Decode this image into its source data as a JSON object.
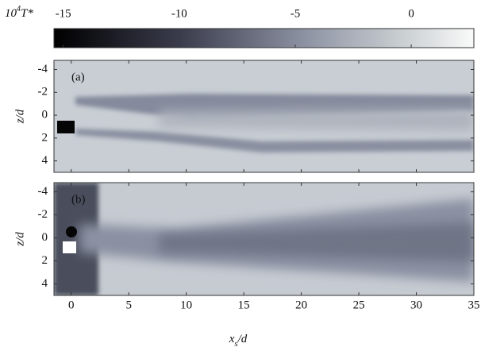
{
  "chart_data": {
    "type": "heatmap",
    "colorbar": {
      "label_base": "10",
      "label_exp": "4",
      "label_var": "T*",
      "clim": [
        -15.4,
        2.7
      ],
      "ticks": [
        -15,
        -10,
        -5,
        0
      ]
    },
    "xlabel": "x",
    "xlabel_sub": "s",
    "xlabel_rest": "/d",
    "ylabel": "z/d",
    "xlim": [
      -1.5,
      35
    ],
    "xticks": [
      0,
      5,
      10,
      15,
      20,
      25,
      30,
      35
    ],
    "panels": [
      {
        "label": "(a)",
        "ylim": [
          -4.8,
          5
        ],
        "yticks": [
          -4,
          -2,
          0,
          2,
          4
        ]
      },
      {
        "label": "(b)",
        "ylim": [
          -4.8,
          5
        ],
        "yticks": [
          -4,
          -2,
          0,
          2,
          4
        ]
      }
    ]
  }
}
